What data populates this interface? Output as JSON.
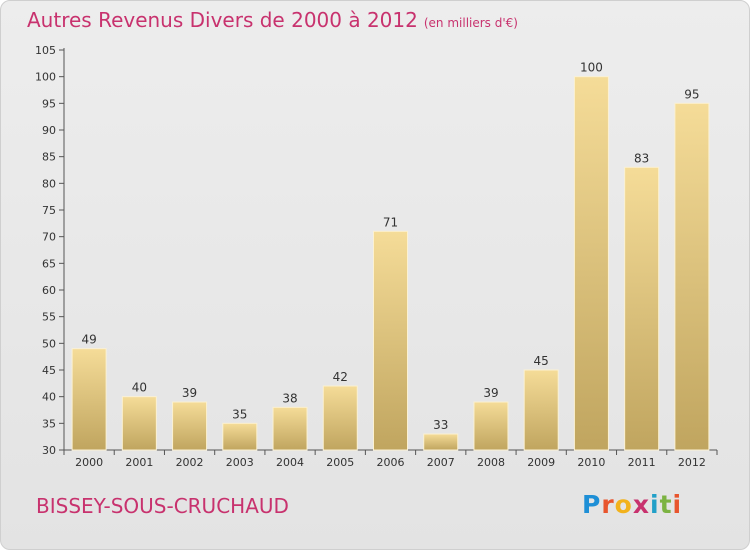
{
  "header": {
    "title": "Autres Revenus Divers de 2000 à 2012",
    "unit": "(en milliers d'€)"
  },
  "footer": {
    "town": "BISSEY-SOUS-CRUCHAUD",
    "logo": "Proxiti"
  },
  "colors": {
    "title": "#c8326e",
    "bar_light": "#f5dc98",
    "bar_dark": "#c0a55f",
    "logo_letters": [
      "#1e8fd6",
      "#e8552d",
      "#f2b21c",
      "#c8326e",
      "#22a0c8",
      "#7cb342",
      "#e8552d"
    ]
  },
  "chart_data": {
    "type": "bar",
    "categories": [
      "2000",
      "2001",
      "2002",
      "2003",
      "2004",
      "2005",
      "2006",
      "2007",
      "2008",
      "2009",
      "2010",
      "2011",
      "2012"
    ],
    "values": [
      49,
      40,
      39,
      35,
      38,
      42,
      71,
      33,
      39,
      45,
      100,
      83,
      95
    ],
    "ylim": [
      30,
      105
    ],
    "yticks": [
      30,
      35,
      40,
      45,
      50,
      55,
      60,
      65,
      70,
      75,
      80,
      85,
      90,
      95,
      100,
      105
    ],
    "grid": false,
    "xlabel": "",
    "ylabel": ""
  }
}
